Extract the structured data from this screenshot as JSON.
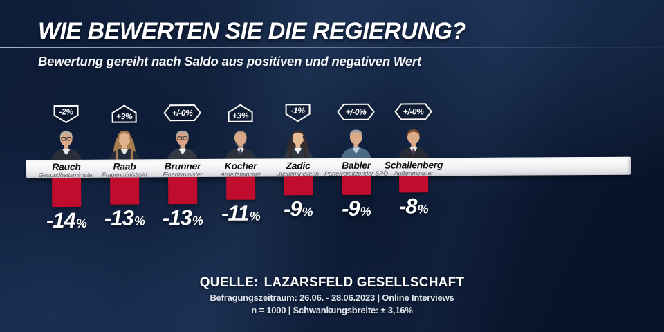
{
  "header": {
    "title": "WIE BEWERTEN SIE DIE REGIERUNG?",
    "subtitle": "Bewertung gereiht nach Saldo aus positiven und negativen Wert"
  },
  "chart_data": {
    "type": "bar",
    "title": "Wie bewerten Sie die Regierung?",
    "subtitle": "Bewertung gereiht nach Saldo aus positiven und negativen Wert",
    "categories": [
      "Rauch",
      "Raab",
      "Brunner",
      "Kocher",
      "Zadic",
      "Babler",
      "Schallenberg"
    ],
    "values": [
      -14,
      -13,
      -13,
      -11,
      -9,
      -9,
      -8
    ],
    "value_unit": "%",
    "changes": [
      "-2%",
      "+3%",
      "+/-0%",
      "+3%",
      "-1%",
      "+/-0%",
      "+/-0%"
    ],
    "bar_color": "#c00d2e",
    "orientation": "columns-hanging-below-axis",
    "legend": false,
    "grid": false
  },
  "ministers": [
    {
      "name": "Rauch",
      "role": "Gesundheitsminister",
      "change": "-2%",
      "change_dir": "down",
      "value": -14,
      "value_display": "-14",
      "avatar": {
        "hair": "#b7b2aa",
        "skin": "#d9a886",
        "suit": "#2a2f3a",
        "shirt": "#e9eaec",
        "long_hair": false,
        "bald": false,
        "glasses": true,
        "beard": false,
        "tie": ""
      }
    },
    {
      "name": "Raab",
      "role": "Frauenministerin",
      "change": "+3%",
      "change_dir": "up",
      "value": -13,
      "value_display": "-13",
      "avatar": {
        "hair": "#a87c4f",
        "skin": "#e3b38e",
        "suit": "#232c3a",
        "shirt": "#f0e9e2",
        "long_hair": true,
        "bald": false,
        "glasses": false,
        "beard": false,
        "tie": ""
      }
    },
    {
      "name": "Brunner",
      "role": "Finanzminister",
      "change": "+/-0%",
      "change_dir": "zero",
      "value": -13,
      "value_display": "-13",
      "avatar": {
        "hair": "#b0aba1",
        "skin": "#dba285",
        "suit": "#343a44",
        "shirt": "#eceff2",
        "long_hair": false,
        "bald": false,
        "glasses": true,
        "beard": false,
        "tie": ""
      }
    },
    {
      "name": "Kocher",
      "role": "Arbeitsminister",
      "change": "+3%",
      "change_dir": "up",
      "value": -11,
      "value_display": "-11",
      "avatar": {
        "hair": "#8b8377",
        "skin": "#d9a886",
        "suit": "#2b303a",
        "shirt": "#e8eaee",
        "long_hair": false,
        "bald": true,
        "glasses": false,
        "beard": true,
        "tie": "#3a4a66"
      }
    },
    {
      "name": "Zadic",
      "role": "Justizministerin",
      "change": "-1%",
      "change_dir": "down",
      "value": -9,
      "value_display": "-9",
      "avatar": {
        "hair": "#332d30",
        "skin": "#e6bb96",
        "suit": "#2f3742",
        "shirt": "#f0f0f2",
        "long_hair": true,
        "bald": false,
        "glasses": false,
        "beard": false,
        "tie": ""
      }
    },
    {
      "name": "Babler",
      "role": "Parteivorsitzender SPÖ",
      "change": "+/-0%",
      "change_dir": "zero",
      "value": -9,
      "value_display": "-9",
      "avatar": {
        "hair": "#9aa0a3",
        "skin": "#dcab88",
        "suit": "#4e6a84",
        "shirt": "#bcd0de",
        "long_hair": false,
        "bald": false,
        "glasses": false,
        "beard": false,
        "tie": ""
      }
    },
    {
      "name": "Schallenberg",
      "role": "Außenminister",
      "change": "+/-0%",
      "change_dir": "zero",
      "value": -8,
      "value_display": "-8",
      "avatar": {
        "hair": "#7b4a32",
        "skin": "#dcab88",
        "suit": "#262b34",
        "shirt": "#eef0f2",
        "long_hair": false,
        "bald": false,
        "glasses": false,
        "beard": false,
        "tie": "#5a3a4a"
      }
    }
  ],
  "footer": {
    "source_label": "QUELLE:",
    "source_name": "LAZARSFELD GESELLSCHAFT",
    "line2": "Befragungszeitraum: 26.06. - 28.06.2023 | Online Interviews",
    "line3": "n = 1000 |  Schwankungsbreite: ±  3,16%"
  },
  "colors": {
    "background": "#0c1a33",
    "bar": "#c00d2e",
    "band": "#f2f2f4",
    "accent_text": "#ffffff"
  }
}
